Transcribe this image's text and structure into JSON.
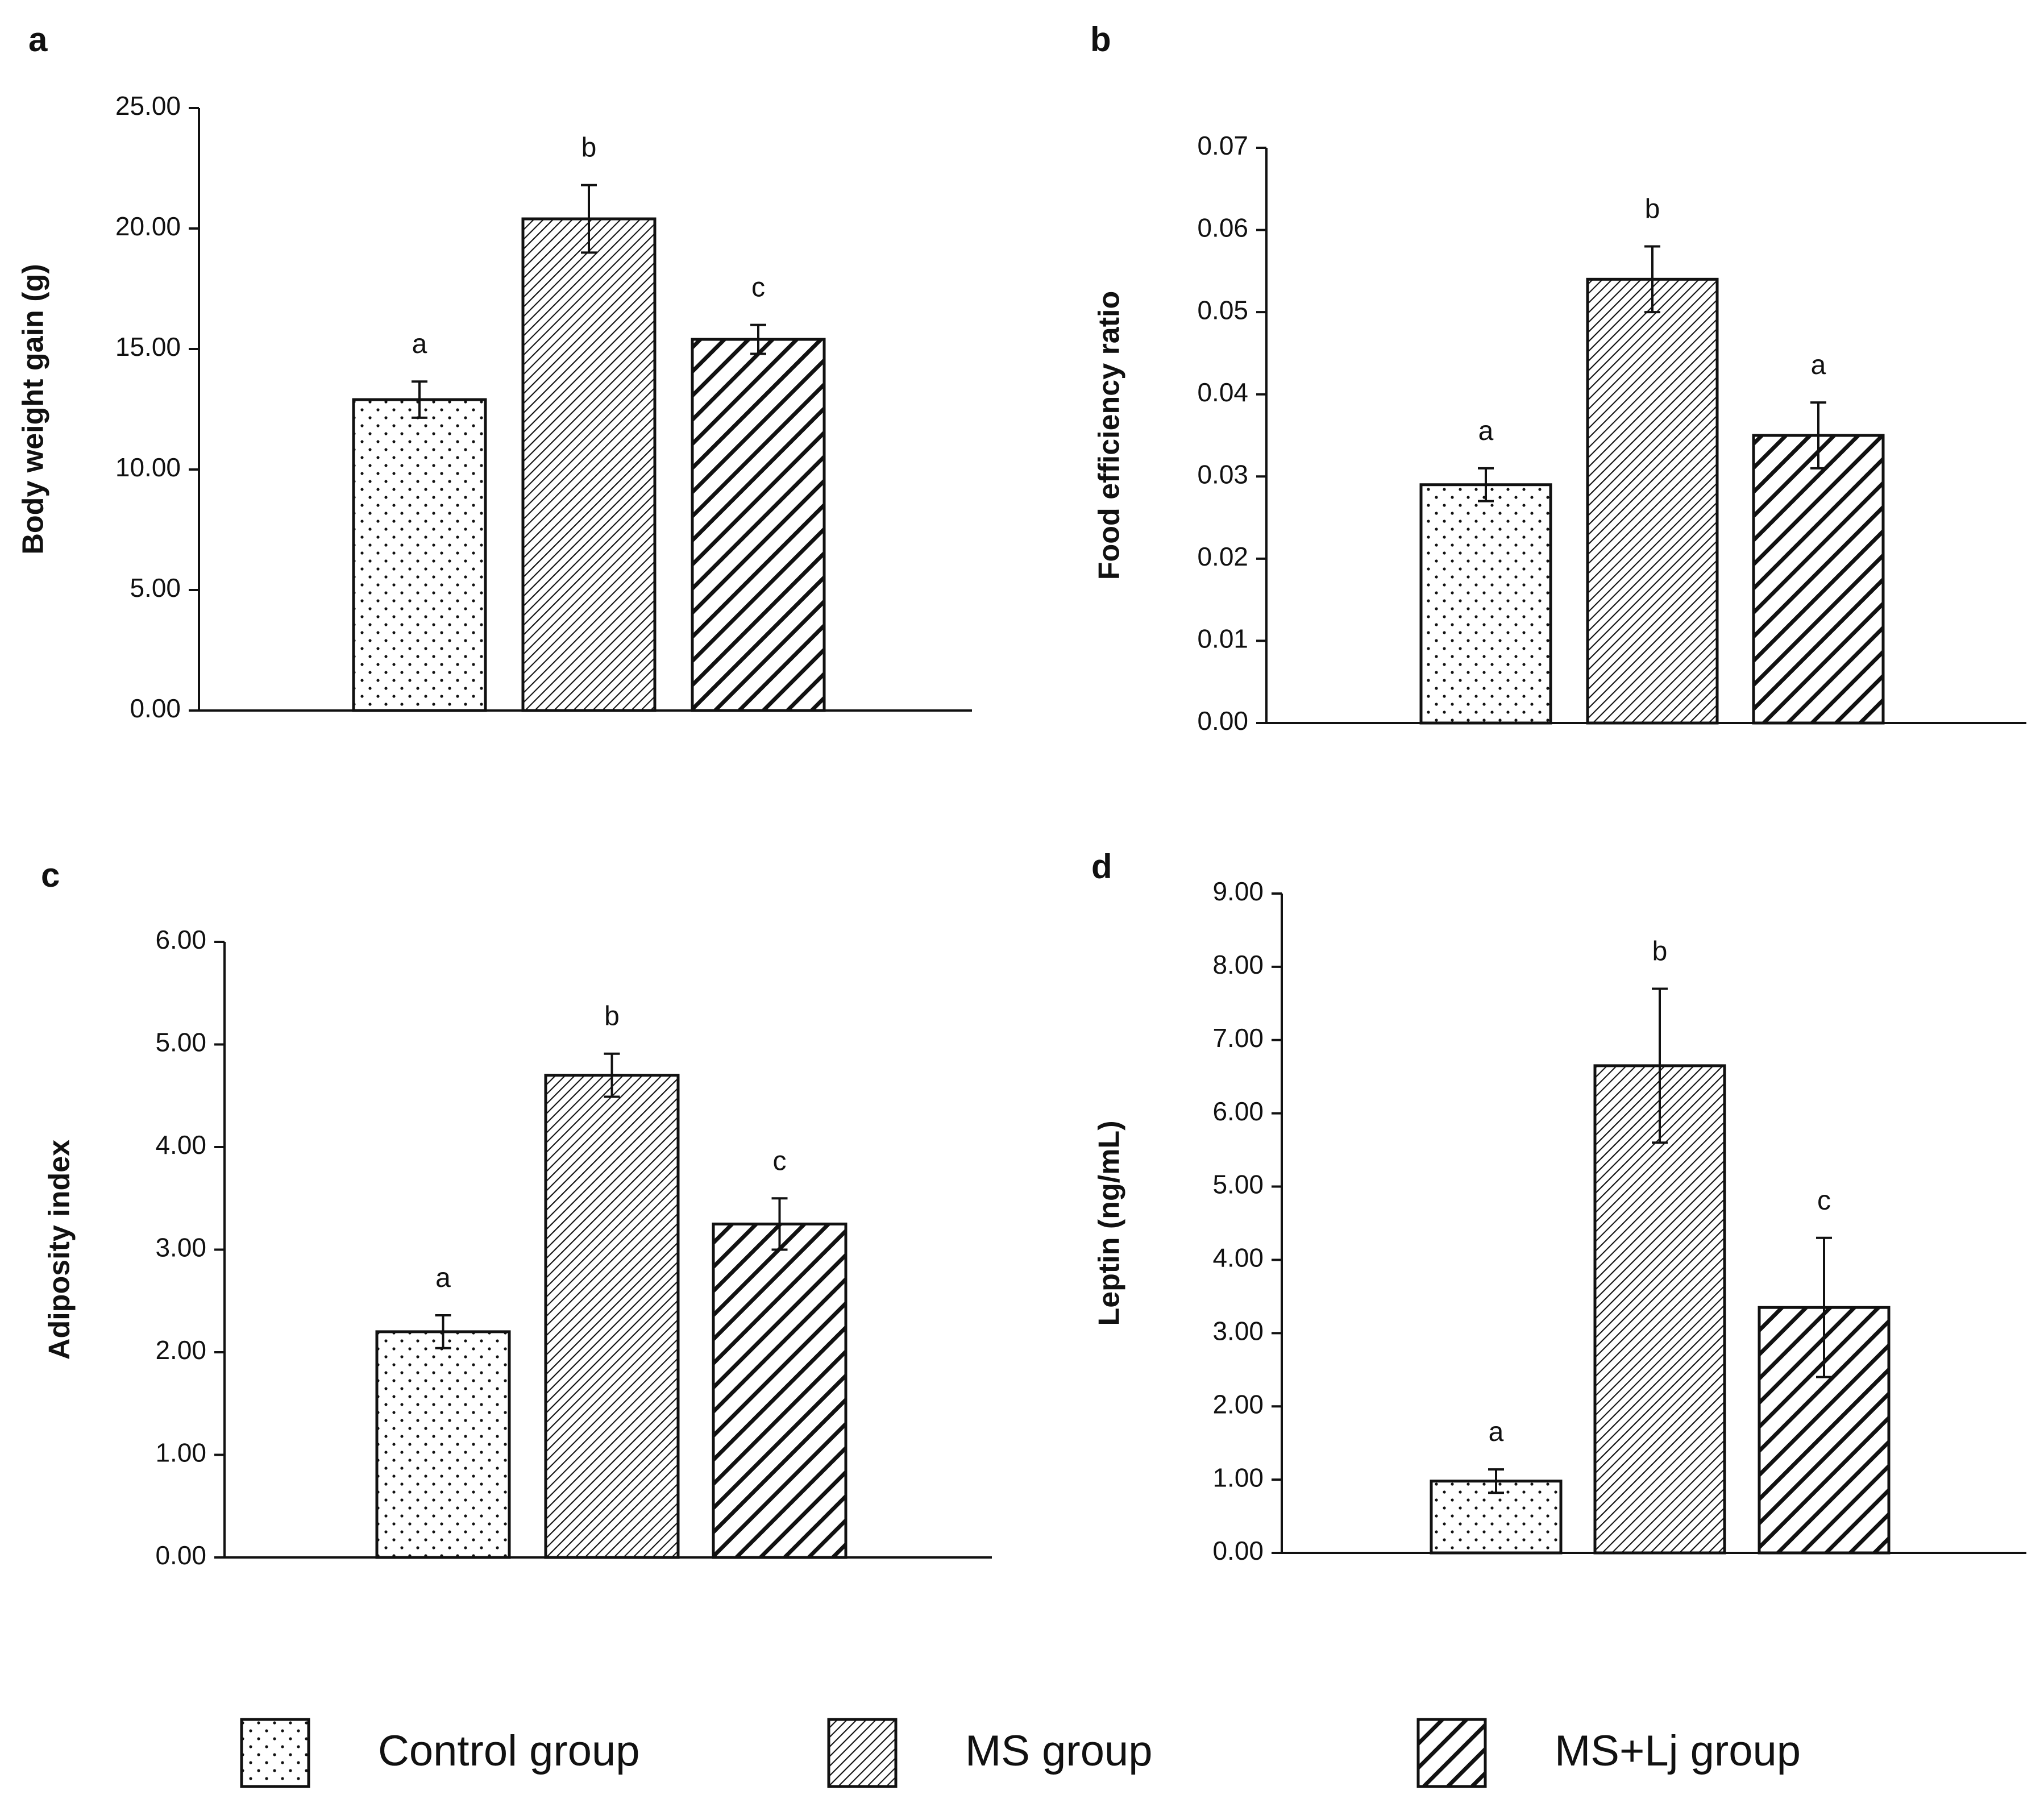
{
  "legend": {
    "items": [
      {
        "label": "Control group",
        "pattern": "dots"
      },
      {
        "label": "MS group",
        "pattern": "fine-hatch"
      },
      {
        "label": "MS+Lj group",
        "pattern": "bold-hatch"
      }
    ]
  },
  "colors": {
    "ink": "#111111",
    "fill": "#ffffff"
  },
  "chart_data": [
    {
      "panel": "a",
      "type": "bar",
      "ylabel": "Body weight gain (g)",
      "categories": [
        "Control group",
        "MS group",
        "MS+Lj group"
      ],
      "values": [
        12.9,
        20.4,
        15.4
      ],
      "errors": [
        0.75,
        1.4,
        0.6
      ],
      "letters": [
        "a",
        "b",
        "c"
      ],
      "ylim": [
        0,
        25
      ],
      "yticks": [
        0,
        5,
        10,
        15,
        20,
        25
      ],
      "yticklabels": [
        "0.00",
        "5.00",
        "10.00",
        "15.00",
        "20.00",
        "25.00"
      ]
    },
    {
      "panel": "b",
      "type": "bar",
      "ylabel": "Food efficiency ratio",
      "categories": [
        "Control group",
        "MS group",
        "MS+Lj group"
      ],
      "values": [
        0.029,
        0.054,
        0.035
      ],
      "errors": [
        0.002,
        0.004,
        0.004
      ],
      "letters": [
        "a",
        "b",
        "a"
      ],
      "ylim": [
        0,
        0.07
      ],
      "yticks": [
        0,
        0.01,
        0.02,
        0.03,
        0.04,
        0.05,
        0.06,
        0.07
      ],
      "yticklabels": [
        "0.00",
        "0.01",
        "0.02",
        "0.03",
        "0.04",
        "0.05",
        "0.06",
        "0.07"
      ]
    },
    {
      "panel": "c",
      "type": "bar",
      "ylabel": "Adiposity index",
      "categories": [
        "Control group",
        "MS group",
        "MS+Lj group"
      ],
      "values": [
        2.2,
        4.7,
        3.25
      ],
      "errors": [
        0.16,
        0.21,
        0.25
      ],
      "letters": [
        "a",
        "b",
        "c"
      ],
      "ylim": [
        0,
        6
      ],
      "yticks": [
        0,
        1,
        2,
        3,
        4,
        5,
        6
      ],
      "yticklabels": [
        "0.00",
        "1.00",
        "2.00",
        "3.00",
        "4.00",
        "5.00",
        "6.00"
      ]
    },
    {
      "panel": "d",
      "type": "bar",
      "ylabel": "Leptin (ng/mL)",
      "categories": [
        "Control group",
        "MS group",
        "MS+Lj group"
      ],
      "values": [
        0.98,
        6.65,
        3.35
      ],
      "errors": [
        0.16,
        1.05,
        0.95
      ],
      "letters": [
        "a",
        "b",
        "c"
      ],
      "ylim": [
        0,
        9
      ],
      "yticks": [
        0,
        1,
        2,
        3,
        4,
        5,
        6,
        7,
        8,
        9
      ],
      "yticklabels": [
        "0.00",
        "1.00",
        "2.00",
        "3.00",
        "4.00",
        "5.00",
        "6.00",
        "7.00",
        "8.00",
        "9.00"
      ]
    }
  ]
}
